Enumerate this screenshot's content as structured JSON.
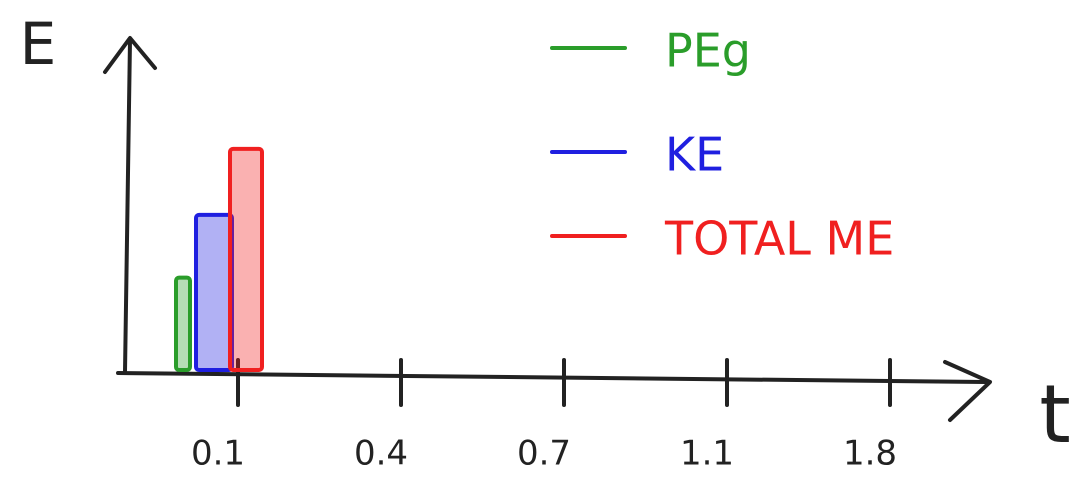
{
  "chart_data": {
    "type": "bar",
    "x_label": "t",
    "y_label": "E",
    "categories": [
      "0.1",
      "0.4",
      "0.7",
      "1.1",
      "1.8"
    ],
    "series": [
      {
        "name": "PEg",
        "color": "#2a9d2a",
        "values": [
          2.8,
          null,
          null,
          null,
          null
        ]
      },
      {
        "name": "KE",
        "color": "#1f1fe0",
        "values": [
          4.7,
          null,
          null,
          null,
          null
        ]
      },
      {
        "name": "TOTAL ME",
        "color": "#f02020",
        "values": [
          6.7,
          null,
          null,
          null,
          null
        ]
      }
    ],
    "ylim": [
      0,
      10
    ]
  }
}
